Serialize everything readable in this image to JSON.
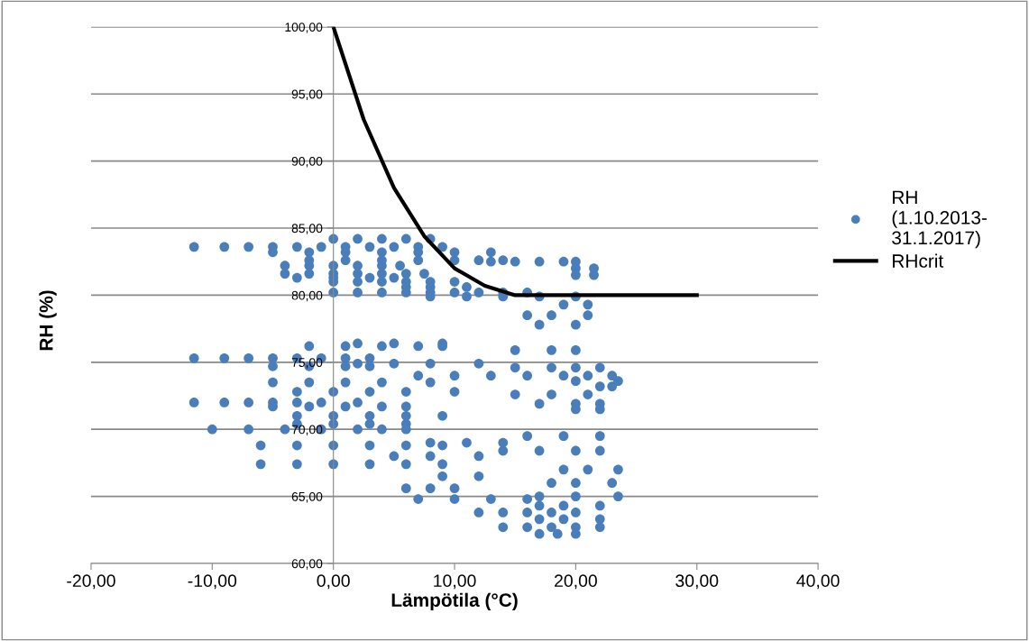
{
  "chart_data": {
    "type": "scatter",
    "xlabel": "Lämpötila (°C)",
    "ylabel": "RH (%)",
    "xlim": [
      -20,
      40
    ],
    "ylim": [
      60,
      100
    ],
    "xticks": [
      {
        "value": -20,
        "label": "-20,00"
      },
      {
        "value": -10,
        "label": "-10,00"
      },
      {
        "value": 0,
        "label": "0,00"
      },
      {
        "value": 10,
        "label": "10,00"
      },
      {
        "value": 20,
        "label": "20,00"
      },
      {
        "value": 30,
        "label": "30,00"
      },
      {
        "value": 40,
        "label": "40,00"
      }
    ],
    "yticks": [
      {
        "value": 60,
        "label": "60,00"
      },
      {
        "value": 65,
        "label": "65,00"
      },
      {
        "value": 70,
        "label": "70,00"
      },
      {
        "value": 75,
        "label": "75,00"
      },
      {
        "value": 80,
        "label": "80,00"
      },
      {
        "value": 85,
        "label": "85,00"
      },
      {
        "value": 90,
        "label": "90,00"
      },
      {
        "value": 95,
        "label": "95,00"
      },
      {
        "value": 100,
        "label": "100,00"
      }
    ],
    "grid": "y",
    "legend": "right",
    "series": [
      {
        "name": "RH\n(1.10.2013-\n31.1.2017)",
        "marker": "circle",
        "color": "#4a7ebb",
        "x": [
          0,
          2,
          4,
          6,
          8,
          -11.5,
          -9,
          -7,
          -5,
          -3,
          -1,
          1,
          3,
          5,
          7,
          9,
          -5,
          -2,
          1,
          4,
          7,
          10,
          13,
          -2,
          1,
          4,
          7,
          10,
          12,
          14,
          13,
          15,
          17,
          19,
          20,
          -4,
          -2,
          0,
          2,
          4,
          5.5,
          20,
          21.5,
          -4,
          -2,
          0,
          2,
          4,
          6,
          7.5,
          -3,
          0,
          3,
          5,
          20,
          21.5,
          0,
          2,
          4,
          6,
          8,
          10,
          6,
          8,
          11,
          0,
          2,
          4,
          6,
          8,
          10,
          12,
          14,
          16,
          8,
          11,
          14,
          17,
          20,
          19,
          21,
          16,
          18,
          21,
          17,
          20,
          2,
          5,
          9,
          -2,
          1,
          4,
          7,
          9,
          15,
          18,
          20,
          -11.5,
          -9,
          -7,
          -5,
          -3,
          -1,
          1,
          3,
          2,
          5,
          8,
          12,
          -5,
          -2,
          1,
          3,
          15,
          18,
          20,
          22,
          7,
          10,
          13,
          16,
          19,
          21,
          23,
          -5,
          -2,
          1,
          4,
          8,
          20,
          23.5,
          22,
          23,
          -3,
          0,
          3,
          6,
          10,
          15,
          18,
          21,
          -11.5,
          -9,
          -7,
          -5,
          -3,
          -1,
          2,
          17,
          20,
          22,
          -5,
          -2,
          1,
          4,
          6,
          -3,
          0,
          3,
          6,
          9,
          20,
          22,
          -3,
          0,
          3,
          6,
          -10,
          -7,
          -4,
          -1,
          2,
          4,
          6,
          16,
          19,
          22,
          -6,
          -3,
          0,
          3,
          6,
          9,
          8,
          11,
          14,
          14,
          17,
          20,
          22,
          5,
          8,
          12,
          -6,
          -3,
          0,
          3,
          6,
          9,
          19,
          21,
          23.5,
          9,
          12,
          18,
          20,
          23,
          6,
          8,
          10,
          17,
          20,
          23.5,
          7,
          10,
          13,
          16,
          17,
          19,
          22,
          12,
          14,
          16,
          18,
          20,
          17,
          19,
          22,
          14,
          16,
          18,
          20,
          22,
          17,
          18.5,
          20
        ],
        "values": [
          84.2,
          84.2,
          84.2,
          84.2,
          84.2,
          83.6,
          83.6,
          83.6,
          83.6,
          83.6,
          83.6,
          83.6,
          83.6,
          83.6,
          83.6,
          83.6,
          83.2,
          83.2,
          83.2,
          83.2,
          83.2,
          83.2,
          83.2,
          82.6,
          82.6,
          82.6,
          82.6,
          82.6,
          82.6,
          82.6,
          82.5,
          82.5,
          82.5,
          82.5,
          82.5,
          82.2,
          82.2,
          82.2,
          82.2,
          82.2,
          82.2,
          82.0,
          82.0,
          81.6,
          81.6,
          81.6,
          81.6,
          81.6,
          81.6,
          81.6,
          81.3,
          81.3,
          81.3,
          81.3,
          81.5,
          81.5,
          81.0,
          81.0,
          81.0,
          81.0,
          81.0,
          81.0,
          80.6,
          80.6,
          80.6,
          80.2,
          80.2,
          80.2,
          80.2,
          80.2,
          80.2,
          80.2,
          80.2,
          80.2,
          79.9,
          79.9,
          79.9,
          79.9,
          79.9,
          79.3,
          79.3,
          78.5,
          78.5,
          78.5,
          77.8,
          77.8,
          76.4,
          76.4,
          76.4,
          76.2,
          76.2,
          76.2,
          76.2,
          76.2,
          75.9,
          75.9,
          75.9,
          75.3,
          75.3,
          75.3,
          75.3,
          75.3,
          75.3,
          75.3,
          75.3,
          74.9,
          74.9,
          74.9,
          74.9,
          74.7,
          74.7,
          74.7,
          74.7,
          74.6,
          74.6,
          74.6,
          74.6,
          74.0,
          74.0,
          74.0,
          74.0,
          74.0,
          74.0,
          74.0,
          73.5,
          73.5,
          73.5,
          73.5,
          73.5,
          73.6,
          73.6,
          73.2,
          73.2,
          72.8,
          72.8,
          72.8,
          72.8,
          72.8,
          72.6,
          72.6,
          72.6,
          72.0,
          72.0,
          72.0,
          72.0,
          72.0,
          72.0,
          72.0,
          71.9,
          71.9,
          71.9,
          71.7,
          71.7,
          71.7,
          71.7,
          71.7,
          71.0,
          71.0,
          71.0,
          71.0,
          71.0,
          71.5,
          71.5,
          70.4,
          70.4,
          70.4,
          70.4,
          70.0,
          70.0,
          70.0,
          70.0,
          70.0,
          70.0,
          70.0,
          69.5,
          69.5,
          69.5,
          68.8,
          68.8,
          68.8,
          68.8,
          68.8,
          68.8,
          69.0,
          69.0,
          69.0,
          68.4,
          68.4,
          68.4,
          68.4,
          68.0,
          68.0,
          68.0,
          67.4,
          67.4,
          67.4,
          67.4,
          67.4,
          67.4,
          67.0,
          67.0,
          67.0,
          66.5,
          66.5,
          66.0,
          66.0,
          66.0,
          65.6,
          65.6,
          65.6,
          65.0,
          65.0,
          65.0,
          64.8,
          64.8,
          64.8,
          64.8,
          64.3,
          64.3,
          64.3,
          63.8,
          63.8,
          63.8,
          63.8,
          63.8,
          63.3,
          63.3,
          63.3,
          62.7,
          62.7,
          62.7,
          62.7,
          62.7,
          62.2,
          62.2,
          62.2
        ]
      },
      {
        "name": "RHcrit",
        "type": "line",
        "marker": "none",
        "line_style": "solid",
        "color": "#000000",
        "x": [
          0,
          2.5,
          5,
          7.5,
          10,
          12.5,
          15,
          17.5,
          20,
          30
        ],
        "values": [
          100,
          93.1,
          88.0,
          84.4,
          82.0,
          80.7,
          80.0,
          80.0,
          80.0,
          80.0
        ]
      }
    ]
  }
}
